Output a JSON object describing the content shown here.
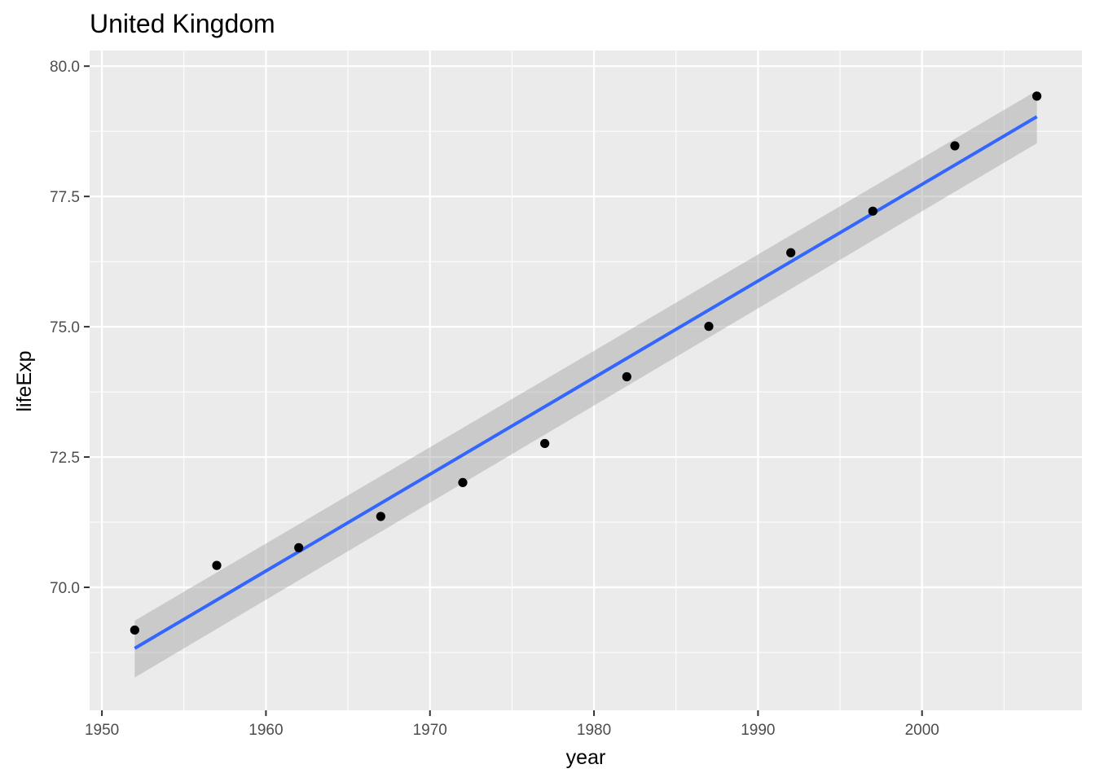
{
  "chart_data": {
    "type": "scatter",
    "title": "United Kingdom",
    "xlabel": "year",
    "ylabel": "lifeExp",
    "xlim": [
      1949.25,
      2009.75
    ],
    "ylim": [
      67.64,
      80.3
    ],
    "x_ticks": [
      1950,
      1960,
      1970,
      1980,
      1990,
      2000
    ],
    "x_tick_labels": [
      "1950",
      "1960",
      "1970",
      "1980",
      "1990",
      "2000"
    ],
    "y_ticks": [
      70.0,
      72.5,
      75.0,
      77.5,
      80.0
    ],
    "y_tick_labels": [
      "70.0",
      "72.5",
      "75.0",
      "77.5",
      "80.0"
    ],
    "grid": true,
    "points": {
      "x": [
        1952,
        1957,
        1962,
        1967,
        1972,
        1977,
        1982,
        1987,
        1992,
        1997,
        2002,
        2007
      ],
      "y": [
        69.18,
        70.42,
        70.76,
        71.36,
        72.01,
        72.76,
        74.04,
        75.007,
        76.42,
        77.218,
        78.471,
        79.425
      ]
    },
    "trend": {
      "method": "linear",
      "x": [
        1952,
        2007
      ],
      "y": [
        68.83,
        79.03
      ],
      "ci_lower": [
        68.27,
        78.52
      ],
      "ci_upper": [
        69.36,
        79.53
      ],
      "color": "#3366FF",
      "band_color": "#999999"
    },
    "colors": {
      "panel": "#EBEBEB",
      "grid_major": "#FFFFFF",
      "point": "#000000"
    }
  }
}
